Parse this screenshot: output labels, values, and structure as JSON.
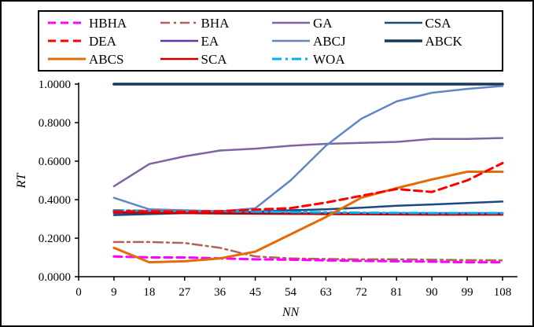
{
  "chart_data": {
    "type": "line",
    "x": [
      9,
      18,
      27,
      36,
      45,
      54,
      63,
      72,
      81,
      90,
      99,
      108
    ],
    "xlabel": "NN",
    "ylabel": "RT",
    "xlim": [
      0,
      108
    ],
    "ylim": [
      0,
      1
    ],
    "x_tick_values": [
      0,
      9,
      18,
      27,
      36,
      45,
      54,
      63,
      72,
      81,
      90,
      99,
      108
    ],
    "x_tick_labels": [
      "0",
      "9",
      "18",
      "27",
      "36",
      "45",
      "54",
      "63",
      "72",
      "81",
      "90",
      "99",
      "108"
    ],
    "y_tick_values": [
      0,
      0.2,
      0.4,
      0.6,
      0.8,
      1.0
    ],
    "y_tick_labels": [
      "0.0000",
      "0.2000",
      "0.4000",
      "0.6000",
      "0.8000",
      "1.0000"
    ],
    "grid": false,
    "legend_position": "top",
    "series": [
      {
        "name": "HBHA",
        "color": "#FF00FF",
        "style": "dashed",
        "width": 3,
        "values": [
          0.105,
          0.1,
          0.1,
          0.095,
          0.09,
          0.088,
          0.085,
          0.082,
          0.08,
          0.078,
          0.075,
          0.075
        ]
      },
      {
        "name": "BHA",
        "color": "#B0615A",
        "style": "dashdot",
        "width": 2.5,
        "values": [
          0.18,
          0.18,
          0.175,
          0.15,
          0.105,
          0.095,
          0.092,
          0.09,
          0.09,
          0.088,
          0.086,
          0.085
        ]
      },
      {
        "name": "GA",
        "color": "#8064A2",
        "style": "solid",
        "width": 2.5,
        "values": [
          0.47,
          0.585,
          0.625,
          0.655,
          0.665,
          0.68,
          0.69,
          0.695,
          0.7,
          0.715,
          0.715,
          0.72
        ]
      },
      {
        "name": "CSA",
        "color": "#1F497D",
        "style": "solid",
        "width": 2.5,
        "values": [
          0.32,
          0.325,
          0.33,
          0.332,
          0.338,
          0.345,
          0.35,
          0.358,
          0.368,
          0.375,
          0.383,
          0.39
        ]
      },
      {
        "name": "DEA",
        "color": "#FF0000",
        "style": "dashed",
        "width": 3,
        "values": [
          0.34,
          0.34,
          0.337,
          0.34,
          0.348,
          0.356,
          0.385,
          0.42,
          0.455,
          0.44,
          0.5,
          0.59
        ]
      },
      {
        "name": "EA",
        "color": "#7030A0",
        "style": "solid",
        "width": 2.5,
        "values": [
          0.33,
          0.33,
          0.33,
          0.33,
          0.33,
          0.33,
          0.33,
          0.33,
          0.33,
          0.33,
          0.33,
          0.33
        ]
      },
      {
        "name": "ABCJ",
        "color": "#6286C5",
        "style": "solid",
        "width": 2.5,
        "values": [
          0.41,
          0.35,
          0.345,
          0.34,
          0.355,
          0.5,
          0.68,
          0.82,
          0.91,
          0.955,
          0.975,
          0.99
        ]
      },
      {
        "name": "ABCK",
        "color": "#17375E",
        "style": "solid",
        "width": 3.5,
        "values": [
          1.0,
          1.0,
          1.0,
          1.0,
          1.0,
          1.0,
          1.0,
          1.0,
          1.0,
          1.0,
          1.0,
          1.0
        ]
      },
      {
        "name": "ABCS",
        "color": "#E36C0A",
        "style": "solid",
        "width": 3,
        "values": [
          0.15,
          0.075,
          0.08,
          0.095,
          0.13,
          0.22,
          0.31,
          0.41,
          0.46,
          0.505,
          0.545,
          0.545
        ]
      },
      {
        "name": "SCA",
        "color": "#C00000",
        "style": "solid",
        "width": 2.5,
        "values": [
          0.335,
          0.332,
          0.33,
          0.328,
          0.327,
          0.326,
          0.325,
          0.324,
          0.323,
          0.322,
          0.322,
          0.322
        ]
      },
      {
        "name": "WOA",
        "color": "#00B0F0",
        "style": "dashdot",
        "width": 3,
        "values": [
          0.345,
          0.342,
          0.34,
          0.34,
          0.338,
          0.336,
          0.334,
          0.332,
          0.331,
          0.33,
          0.33,
          0.33
        ]
      }
    ],
    "draw_order": [
      "GA",
      "ABCK",
      "EA",
      "CSA",
      "SCA",
      "WOA",
      "BHA",
      "HBHA",
      "ABCJ",
      "ABCS",
      "DEA"
    ]
  },
  "legend": {
    "order": [
      "HBHA",
      "BHA",
      "GA",
      "CSA",
      "DEA",
      "EA",
      "ABCJ",
      "ABCK",
      "ABCS",
      "SCA",
      "WOA"
    ]
  }
}
